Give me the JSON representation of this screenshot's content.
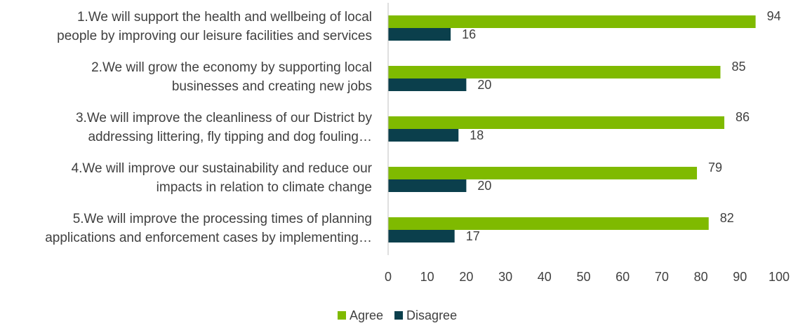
{
  "chart_data": {
    "type": "bar",
    "orientation": "horizontal",
    "categories": [
      "1.We will support the health and wellbeing of local\npeople by improving our leisure facilities and services",
      "2.We will grow the economy by supporting local\nbusinesses and creating new jobs",
      "3.We will improve the cleanliness of our District by\naddressing littering, fly tipping and dog fouling…",
      "4.We will improve our sustainability and reduce our\nimpacts in relation to climate change",
      "5.We will improve the processing times of planning\napplications and enforcement cases by implementing…"
    ],
    "series": [
      {
        "name": "Agree",
        "color": "#7fba00",
        "values": [
          94,
          85,
          86,
          79,
          82
        ]
      },
      {
        "name": "Disagree",
        "color": "#0b3f4c",
        "values": [
          16,
          20,
          18,
          20,
          17
        ]
      }
    ],
    "xlim": [
      0,
      100
    ],
    "xticks": [
      0,
      10,
      20,
      30,
      40,
      50,
      60,
      70,
      80,
      90,
      100
    ],
    "legend": "bottom"
  }
}
